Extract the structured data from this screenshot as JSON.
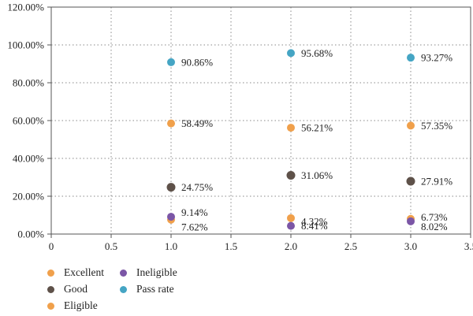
{
  "chart_data": {
    "type": "scatter",
    "title": "",
    "xlabel": "",
    "ylabel": "",
    "xlim": [
      0,
      3.5
    ],
    "ylim": [
      0,
      120
    ],
    "x_ticks": [
      "0",
      "0.5",
      "1.0",
      "1.5",
      "2.0",
      "2.5",
      "3.0",
      "3.5"
    ],
    "x_tick_values": [
      0,
      0.5,
      1.0,
      1.5,
      2.0,
      2.5,
      3.0,
      3.5
    ],
    "y_ticks": [
      "0.00%",
      "20.00%",
      "40.00%",
      "60.00%",
      "80.00%",
      "100.00%",
      "120.00%"
    ],
    "y_tick_values": [
      0,
      20,
      40,
      60,
      80,
      100,
      120
    ],
    "grid": true,
    "legend_position": "bottom-left",
    "series": [
      {
        "name": "Excellent",
        "color": "#f0a04b",
        "x": [
          1,
          2,
          3
        ],
        "y": [
          7.62,
          8.41,
          8.02
        ],
        "labels": [
          "7.62%",
          "8.41%",
          "8.02%"
        ]
      },
      {
        "name": "Good",
        "color": "#5e5149",
        "x": [
          1,
          2,
          3
        ],
        "y": [
          24.75,
          31.06,
          27.91
        ],
        "labels": [
          "24.75%",
          "31.06%",
          "27.91%"
        ]
      },
      {
        "name": "Eligible",
        "color": "#f0a04b",
        "x": [
          1,
          2,
          3
        ],
        "y": [
          58.49,
          56.21,
          57.35
        ],
        "labels": [
          "58.49%",
          "56.21%",
          "57.35%"
        ]
      },
      {
        "name": "Ineligible",
        "color": "#7b56a6",
        "x": [
          1,
          2,
          3
        ],
        "y": [
          9.14,
          4.32,
          6.73
        ],
        "labels": [
          "9.14%",
          "4.32%",
          "6.73%"
        ]
      },
      {
        "name": "Pass rate",
        "color": "#45a5c4",
        "x": [
          1,
          2,
          3
        ],
        "y": [
          90.86,
          95.68,
          93.27
        ],
        "labels": [
          "90.86%",
          "95.68%",
          "93.27%"
        ]
      }
    ]
  }
}
